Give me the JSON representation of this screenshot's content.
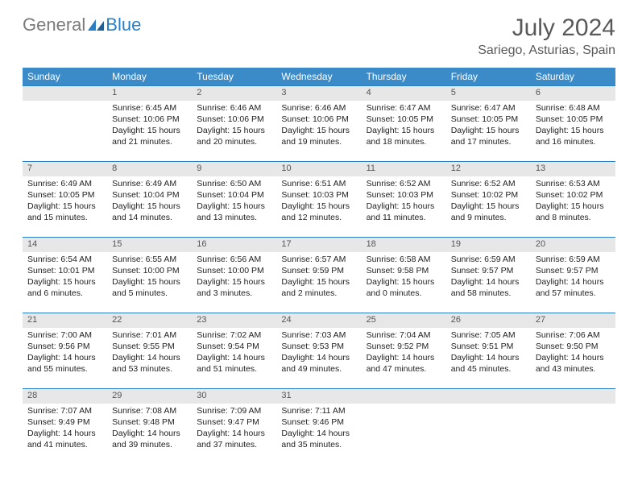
{
  "brand": {
    "part1": "General",
    "part2": "Blue"
  },
  "title": "July 2024",
  "subtitle": "Sariego, Asturias, Spain",
  "colors": {
    "header_bg": "#3b8bc9",
    "rule": "#2a7fc4",
    "daynum_bg": "#e7e7e7",
    "title_color": "#595959",
    "brand_gray": "#7a7a7a",
    "brand_blue": "#2a7fc4"
  },
  "dow": [
    "Sunday",
    "Monday",
    "Tuesday",
    "Wednesday",
    "Thursday",
    "Friday",
    "Saturday"
  ],
  "weeks": [
    [
      null,
      {
        "n": "1",
        "sr": "6:45 AM",
        "ss": "10:06 PM",
        "dl": "15 hours and 21 minutes."
      },
      {
        "n": "2",
        "sr": "6:46 AM",
        "ss": "10:06 PM",
        "dl": "15 hours and 20 minutes."
      },
      {
        "n": "3",
        "sr": "6:46 AM",
        "ss": "10:06 PM",
        "dl": "15 hours and 19 minutes."
      },
      {
        "n": "4",
        "sr": "6:47 AM",
        "ss": "10:05 PM",
        "dl": "15 hours and 18 minutes."
      },
      {
        "n": "5",
        "sr": "6:47 AM",
        "ss": "10:05 PM",
        "dl": "15 hours and 17 minutes."
      },
      {
        "n": "6",
        "sr": "6:48 AM",
        "ss": "10:05 PM",
        "dl": "15 hours and 16 minutes."
      }
    ],
    [
      {
        "n": "7",
        "sr": "6:49 AM",
        "ss": "10:05 PM",
        "dl": "15 hours and 15 minutes."
      },
      {
        "n": "8",
        "sr": "6:49 AM",
        "ss": "10:04 PM",
        "dl": "15 hours and 14 minutes."
      },
      {
        "n": "9",
        "sr": "6:50 AM",
        "ss": "10:04 PM",
        "dl": "15 hours and 13 minutes."
      },
      {
        "n": "10",
        "sr": "6:51 AM",
        "ss": "10:03 PM",
        "dl": "15 hours and 12 minutes."
      },
      {
        "n": "11",
        "sr": "6:52 AM",
        "ss": "10:03 PM",
        "dl": "15 hours and 11 minutes."
      },
      {
        "n": "12",
        "sr": "6:52 AM",
        "ss": "10:02 PM",
        "dl": "15 hours and 9 minutes."
      },
      {
        "n": "13",
        "sr": "6:53 AM",
        "ss": "10:02 PM",
        "dl": "15 hours and 8 minutes."
      }
    ],
    [
      {
        "n": "14",
        "sr": "6:54 AM",
        "ss": "10:01 PM",
        "dl": "15 hours and 6 minutes."
      },
      {
        "n": "15",
        "sr": "6:55 AM",
        "ss": "10:00 PM",
        "dl": "15 hours and 5 minutes."
      },
      {
        "n": "16",
        "sr": "6:56 AM",
        "ss": "10:00 PM",
        "dl": "15 hours and 3 minutes."
      },
      {
        "n": "17",
        "sr": "6:57 AM",
        "ss": "9:59 PM",
        "dl": "15 hours and 2 minutes."
      },
      {
        "n": "18",
        "sr": "6:58 AM",
        "ss": "9:58 PM",
        "dl": "15 hours and 0 minutes."
      },
      {
        "n": "19",
        "sr": "6:59 AM",
        "ss": "9:57 PM",
        "dl": "14 hours and 58 minutes."
      },
      {
        "n": "20",
        "sr": "6:59 AM",
        "ss": "9:57 PM",
        "dl": "14 hours and 57 minutes."
      }
    ],
    [
      {
        "n": "21",
        "sr": "7:00 AM",
        "ss": "9:56 PM",
        "dl": "14 hours and 55 minutes."
      },
      {
        "n": "22",
        "sr": "7:01 AM",
        "ss": "9:55 PM",
        "dl": "14 hours and 53 minutes."
      },
      {
        "n": "23",
        "sr": "7:02 AM",
        "ss": "9:54 PM",
        "dl": "14 hours and 51 minutes."
      },
      {
        "n": "24",
        "sr": "7:03 AM",
        "ss": "9:53 PM",
        "dl": "14 hours and 49 minutes."
      },
      {
        "n": "25",
        "sr": "7:04 AM",
        "ss": "9:52 PM",
        "dl": "14 hours and 47 minutes."
      },
      {
        "n": "26",
        "sr": "7:05 AM",
        "ss": "9:51 PM",
        "dl": "14 hours and 45 minutes."
      },
      {
        "n": "27",
        "sr": "7:06 AM",
        "ss": "9:50 PM",
        "dl": "14 hours and 43 minutes."
      }
    ],
    [
      {
        "n": "28",
        "sr": "7:07 AM",
        "ss": "9:49 PM",
        "dl": "14 hours and 41 minutes."
      },
      {
        "n": "29",
        "sr": "7:08 AM",
        "ss": "9:48 PM",
        "dl": "14 hours and 39 minutes."
      },
      {
        "n": "30",
        "sr": "7:09 AM",
        "ss": "9:47 PM",
        "dl": "14 hours and 37 minutes."
      },
      {
        "n": "31",
        "sr": "7:11 AM",
        "ss": "9:46 PM",
        "dl": "14 hours and 35 minutes."
      },
      null,
      null,
      null
    ]
  ],
  "labels": {
    "sunrise": "Sunrise: ",
    "sunset": "Sunset: ",
    "daylight": "Daylight: "
  }
}
